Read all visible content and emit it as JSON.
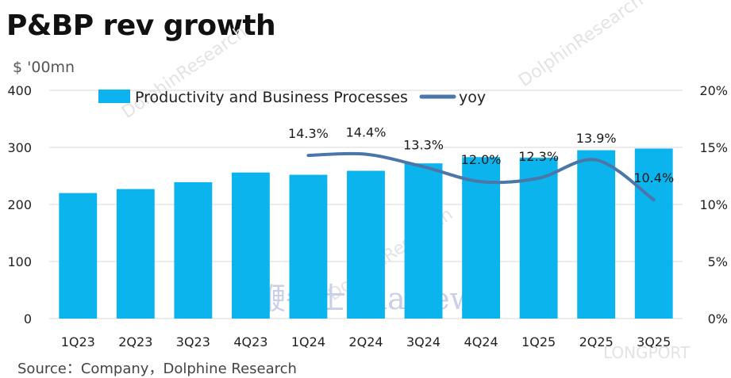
{
  "title": "P&BP rev growth",
  "y_unit": "$ '00mn",
  "source": "Source：Company，Dolphine Research",
  "watermarks": [
    "DolphinResearch",
    "鞭牛士 BiaNews",
    "LONGPORT"
  ],
  "colors": {
    "bar": "#0cb4ee",
    "line": "#4a76aa"
  },
  "chart_data": {
    "type": "bar",
    "categories": [
      "1Q23",
      "2Q23",
      "3Q23",
      "4Q23",
      "1Q24",
      "2Q24",
      "3Q24",
      "4Q24",
      "1Q25",
      "2Q25",
      "3Q25"
    ],
    "series": [
      {
        "name": "Productivity and Business Processes",
        "type": "bar",
        "axis": "left",
        "values": [
          220,
          227,
          239,
          256,
          252,
          259,
          272,
          283,
          282,
          295,
          298
        ]
      },
      {
        "name": "yoy",
        "type": "line",
        "axis": "right",
        "values": [
          null,
          null,
          null,
          null,
          14.3,
          14.4,
          13.3,
          12.0,
          12.3,
          13.9,
          10.4
        ],
        "labels": [
          "",
          "",
          "",
          "",
          "14.3%",
          "14.4%",
          "13.3%",
          "12.0%",
          "12.3%",
          "13.9%",
          "10.4%"
        ]
      }
    ],
    "ylim": [
      0,
      400
    ],
    "yticks": [
      "0",
      "100",
      "200",
      "300",
      "400"
    ],
    "y2lim": [
      0,
      20
    ],
    "y2ticks": [
      "0%",
      "5%",
      "10%",
      "15%",
      "20%"
    ],
    "legend_position": "top",
    "grid": true
  }
}
